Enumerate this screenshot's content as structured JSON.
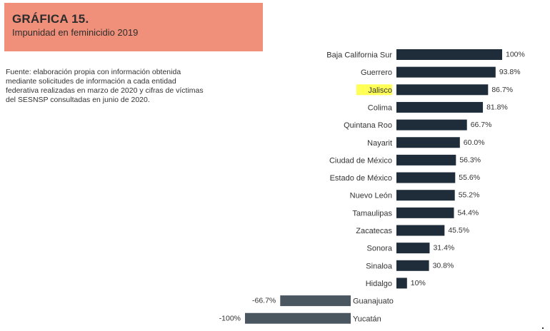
{
  "header": {
    "title": "GRÁFICA 15.",
    "subtitle": "Impunidad en feminicidio 2019"
  },
  "source_lines": [
    "Fuente: elaboración propia con información obtenida",
    "mediante solicitudes de información a cada entidad",
    "federativa realizadas en marzo de 2020 y cifras de víctimas",
    "del SESNSP consultadas en junio de 2020."
  ],
  "colors": {
    "header_bg": "#f0907a",
    "positive_bar": "#1f2d3a",
    "negative_bar": "#4a5660",
    "highlight": "#ffff55"
  },
  "chart_data": {
    "type": "bar",
    "orientation": "horizontal",
    "title": "Impunidad en feminicidio 2019",
    "xlim": [
      -100,
      100
    ],
    "highlighted_category": "Jalisco",
    "categories": [
      "Baja California Sur",
      "Guerrero",
      "Jalisco",
      "Colima",
      "Quintana Roo",
      "Nayarit",
      "Ciudad de México",
      "Estado de México",
      "Nuevo León",
      "Tamaulipas",
      "Zacatecas",
      "Sonora",
      "Sinaloa",
      "Hidalgo",
      "Guanajuato",
      "Yucatán"
    ],
    "values": [
      100,
      93.8,
      86.7,
      81.8,
      66.7,
      60.0,
      56.3,
      55.6,
      55.2,
      54.4,
      45.5,
      31.4,
      30.8,
      10,
      -66.7,
      -100
    ],
    "data_labels": [
      "100%",
      "93.8%",
      "86.7%",
      "81.8%",
      "66.7%",
      "60.0%",
      "56.3%",
      "55.6%",
      "55.2%",
      "54.4%",
      "45.5%",
      "31.4%",
      "30.8%",
      "10%",
      "-66.7%",
      "-100%"
    ]
  }
}
